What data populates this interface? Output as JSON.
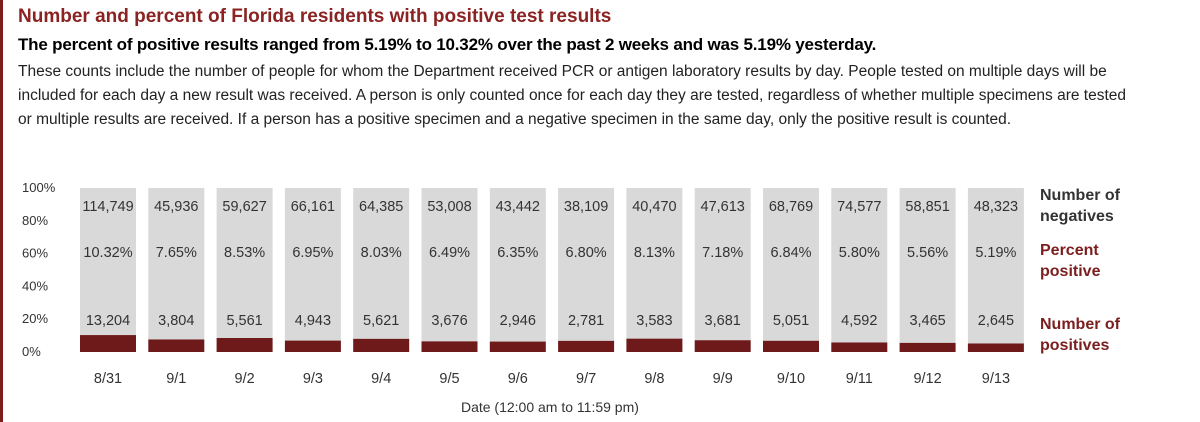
{
  "title": "Number and percent of Florida residents with positive test results",
  "subtitle": "The percent of positive results ranged from 5.19% to 10.32% over the past 2 weeks and was 5.19% yesterday.",
  "description": "These counts include the number of people for whom the Department received PCR or antigen laboratory results by day. People tested on multiple days will be included for each day a new result was received. A person is only counted once for each day they are tested, regardless of whether multiple specimens are tested or multiple results are received. If a person has a positive specimen and a negative specimen in the same day, only the positive result is counted.",
  "colors": {
    "negatives": "#d9d9d9",
    "positives": "#6e1a1a",
    "accent": "#8b2323",
    "label_dark_red": "#7b1e1e"
  },
  "chart_data": {
    "type": "bar",
    "stacked": "100%",
    "categories": [
      "8/31",
      "9/1",
      "9/2",
      "9/3",
      "9/4",
      "9/5",
      "9/6",
      "9/7",
      "9/8",
      "9/9",
      "9/10",
      "9/11",
      "9/12",
      "9/13"
    ],
    "series": [
      {
        "name": "Number of positives",
        "values": [
          13204,
          3804,
          5561,
          4943,
          5621,
          3676,
          2946,
          2781,
          3583,
          3681,
          5051,
          4592,
          3465,
          2645
        ]
      },
      {
        "name": "Number of negatives",
        "values": [
          114749,
          45936,
          59627,
          66161,
          64385,
          53008,
          43442,
          38109,
          40470,
          47613,
          68769,
          74577,
          58851,
          48323
        ]
      }
    ],
    "positives_labels": [
      "13,204",
      "3,804",
      "5,561",
      "4,943",
      "5,621",
      "3,676",
      "2,946",
      "2,781",
      "3,583",
      "3,681",
      "5,051",
      "4,592",
      "3,465",
      "2,645"
    ],
    "negatives_labels": [
      "114,749",
      "45,936",
      "59,627",
      "66,161",
      "64,385",
      "53,008",
      "43,442",
      "38,109",
      "40,470",
      "47,613",
      "68,769",
      "74,577",
      "58,851",
      "48,323"
    ],
    "percent_positive": [
      "10.32%",
      "7.65%",
      "8.53%",
      "6.95%",
      "8.03%",
      "6.49%",
      "6.35%",
      "6.80%",
      "8.13%",
      "7.18%",
      "6.84%",
      "5.80%",
      "5.56%",
      "5.19%"
    ],
    "ytick_labels": [
      "100%",
      "80%",
      "60%",
      "40%",
      "20%",
      "0%"
    ],
    "ylim": [
      0,
      100
    ],
    "xlabel": "Date (12:00 am to 11:59 pm)",
    "row_labels": {
      "negatives": [
        "Number of",
        "negatives"
      ],
      "percent": [
        "Percent",
        "positive"
      ],
      "positives": [
        "Number of",
        "positives"
      ]
    }
  }
}
